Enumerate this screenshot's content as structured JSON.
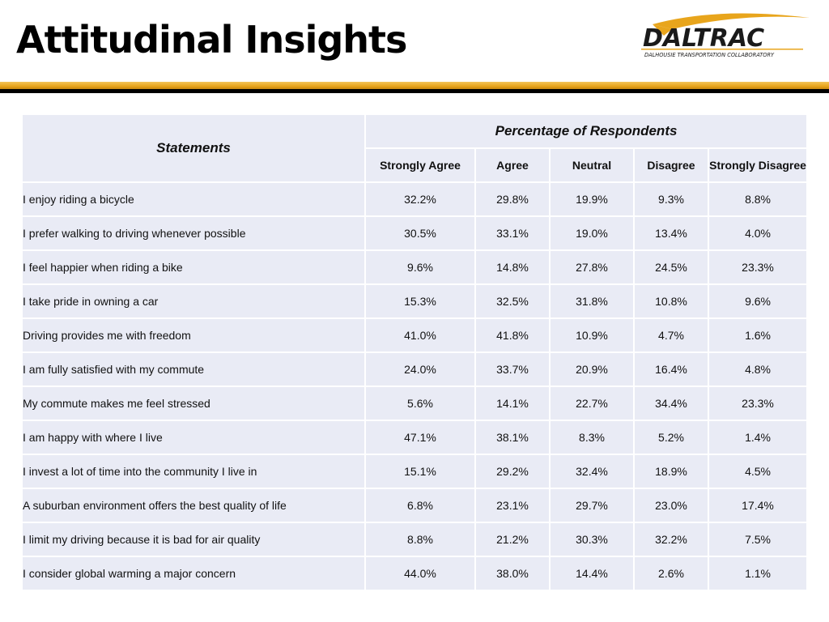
{
  "slide": {
    "title": "Attitudinal Insights"
  },
  "logo": {
    "name": "DALTRAC",
    "tagline": "DALHOUSIE TRANSPORTATION COLLABORATORY"
  },
  "colors": {
    "gold": "#e8a51c",
    "band": "#e9ebf5",
    "black": "#000000"
  },
  "table": {
    "statements_header": "Statements",
    "group_header": "Percentage of Respondents",
    "columns": [
      "Strongly Agree",
      "Agree",
      "Neutral",
      "Disagree",
      "Strongly Disagree"
    ],
    "rows": [
      {
        "statement": "I enjoy riding a bicycle",
        "values": [
          "32.2%",
          "29.8%",
          "19.9%",
          "9.3%",
          "8.8%"
        ]
      },
      {
        "statement": "I prefer walking to driving whenever possible",
        "values": [
          "30.5%",
          "33.1%",
          "19.0%",
          "13.4%",
          "4.0%"
        ]
      },
      {
        "statement": "I feel happier when riding a bike",
        "values": [
          "9.6%",
          "14.8%",
          "27.8%",
          "24.5%",
          "23.3%"
        ]
      },
      {
        "statement": "I take pride in owning a car",
        "values": [
          "15.3%",
          "32.5%",
          "31.8%",
          "10.8%",
          "9.6%"
        ]
      },
      {
        "statement": "Driving provides me with freedom",
        "values": [
          "41.0%",
          "41.8%",
          "10.9%",
          "4.7%",
          "1.6%"
        ]
      },
      {
        "statement": "I am fully satisfied with my commute",
        "values": [
          "24.0%",
          "33.7%",
          "20.9%",
          "16.4%",
          "4.8%"
        ]
      },
      {
        "statement": "My commute makes me feel stressed",
        "values": [
          "5.6%",
          "14.1%",
          "22.7%",
          "34.4%",
          "23.3%"
        ]
      },
      {
        "statement": "I am happy with where I live",
        "values": [
          "47.1%",
          "38.1%",
          "8.3%",
          "5.2%",
          "1.4%"
        ]
      },
      {
        "statement": "I invest a lot of time into the community I live in",
        "values": [
          "15.1%",
          "29.2%",
          "32.4%",
          "18.9%",
          "4.5%"
        ]
      },
      {
        "statement": "A suburban environment offers the best quality of life",
        "values": [
          "6.8%",
          "23.1%",
          "29.7%",
          "23.0%",
          "17.4%"
        ]
      },
      {
        "statement": "I limit my driving because it is bad for air quality",
        "values": [
          "8.8%",
          "21.2%",
          "30.3%",
          "32.2%",
          "7.5%"
        ]
      },
      {
        "statement": "I consider global warming a major concern",
        "values": [
          "44.0%",
          "38.0%",
          "14.4%",
          "2.6%",
          "1.1%"
        ]
      }
    ]
  }
}
